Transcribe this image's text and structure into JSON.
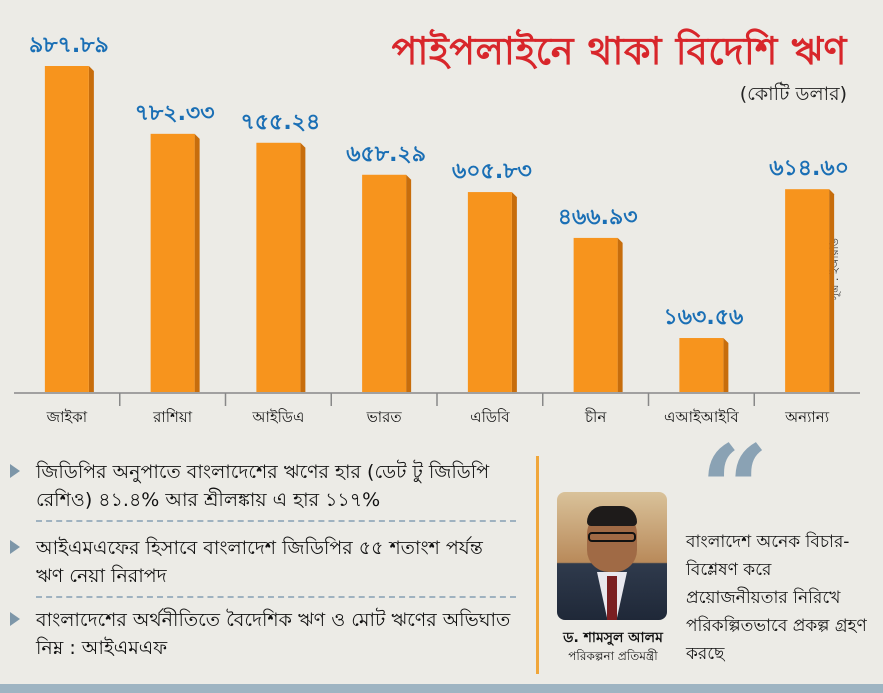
{
  "header": {
    "title": "পাইপলাইনে থাকা বিদেশি ঋণ",
    "unit": "(কোটি ডলার)",
    "source": "সূত্র : ইআরডি"
  },
  "chart_data": {
    "type": "bar",
    "title": "পাইপলাইনে থাকা বিদেশি ঋণ",
    "ylabel": "(কোটি ডলার)",
    "categories": [
      "জাইকা",
      "রাশিয়া",
      "আইডিএ",
      "ভারত",
      "এডিবি",
      "চীন",
      "এআইআইবি",
      "অন্যান্য"
    ],
    "values": [
      987.89,
      782.33,
      755.24,
      658.29,
      605.83,
      466.93,
      163.56,
      614.6
    ],
    "value_labels": [
      "৯৮৭.৮৯",
      "৭৮২.৩৩",
      "৭৫৫.২৪",
      "৬৫৮.২৯",
      "৬০৫.৮৩",
      "৪৬৬.৯৩",
      "১৬৩.৫৬",
      "৬১৪.৬০"
    ],
    "ylim": [
      0,
      1000
    ],
    "grid": false,
    "colors": {
      "bar": "#f7941d",
      "bar_side": "#c76d0c",
      "value_label": "#1a6fb5",
      "axis": "#888888"
    }
  },
  "bullets": [
    "জিডিপির অনুপাতে বাংলাদেশের ঋণের হার (ডেট টু জিডিপি রেশিও) ৪১.৪% আর শ্রীলঙ্কায় এ হার ১১৭%",
    "আইএমএফের হিসাবে বাংলাদেশ জিডিপির ৫৫ শতাংশ পর্যন্ত ঋণ নেয়া নিরাপদ",
    "বাংলাদেশের অর্থনীতিতে বৈদেশিক ঋণ ও মোট ঋণের অভিঘাত নিম্ন : আইএমএফ"
  ],
  "person": {
    "name": "ড. শামসুল আলম",
    "designation": "পরিকল্পনা প্রতিমন্ত্রী",
    "quote_mark": "“",
    "quote": "বাংলাদেশ অনেক বিচার-বিশ্লেষণ করে প্রয়োজনীয়তার নিরিখে পরিকল্পিতভাবে প্রকল্প গ্রহণ করছে"
  }
}
